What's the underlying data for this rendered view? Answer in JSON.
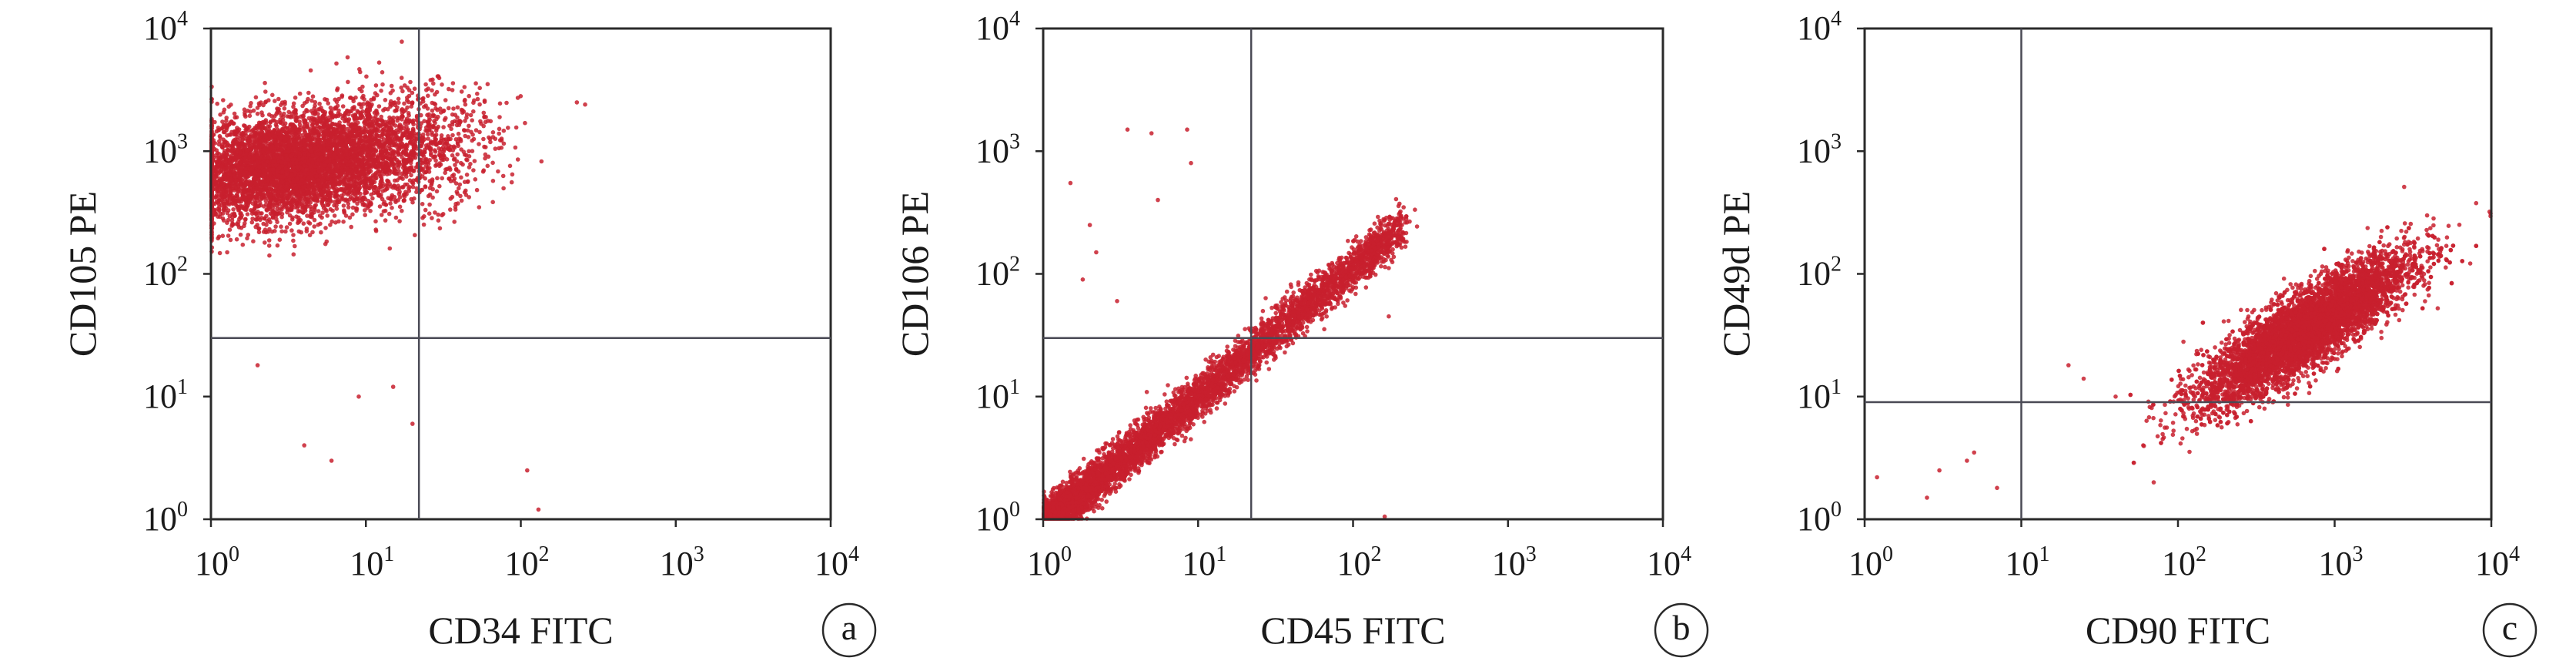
{
  "figure": {
    "colors": {
      "point": "#c8202e",
      "axis": "#2a2a2a",
      "gate": "#4a4a55"
    }
  },
  "chart_data": [
    {
      "type": "scatter",
      "panel_label": "a",
      "xlabel": "CD34 FITC",
      "ylabel": "CD105 PE",
      "x_scale": "log",
      "y_scale": "log",
      "xlim": [
        1,
        10000
      ],
      "ylim": [
        1,
        10000
      ],
      "x_ticks": [
        {
          "base": "10",
          "exp": "0"
        },
        {
          "base": "10",
          "exp": "1"
        },
        {
          "base": "10",
          "exp": "2"
        },
        {
          "base": "10",
          "exp": "3"
        },
        {
          "base": "10",
          "exp": "4"
        }
      ],
      "y_ticks": [
        {
          "base": "10",
          "exp": "0"
        },
        {
          "base": "10",
          "exp": "1"
        },
        {
          "base": "10",
          "exp": "2"
        },
        {
          "base": "10",
          "exp": "3"
        },
        {
          "base": "10",
          "exp": "4"
        }
      ],
      "gate": {
        "x": 22,
        "y": 30
      },
      "clusters": [
        {
          "n": 5200,
          "center": [
            3.2,
            750
          ],
          "spread_log10": [
            0.38,
            0.22
          ],
          "corr": 0.25
        },
        {
          "n": 900,
          "center": [
            18,
            1100
          ],
          "spread_log10": [
            0.3,
            0.25
          ],
          "corr": 0.1
        }
      ],
      "outliers": [
        [
          2,
          18
        ],
        [
          4,
          4
        ],
        [
          6,
          3
        ],
        [
          9,
          10
        ],
        [
          15,
          12
        ],
        [
          20,
          6
        ],
        [
          110,
          2.5
        ],
        [
          130,
          1.2
        ],
        [
          230,
          2500
        ],
        [
          260,
          2400
        ]
      ]
    },
    {
      "type": "scatter",
      "panel_label": "b",
      "xlabel": "CD45 FITC",
      "ylabel": "CD106 PE",
      "x_scale": "log",
      "y_scale": "log",
      "xlim": [
        1,
        10000
      ],
      "ylim": [
        1,
        10000
      ],
      "x_ticks": [
        {
          "base": "10",
          "exp": "0"
        },
        {
          "base": "10",
          "exp": "1"
        },
        {
          "base": "10",
          "exp": "2"
        },
        {
          "base": "10",
          "exp": "3"
        },
        {
          "base": "10",
          "exp": "4"
        }
      ],
      "y_ticks": [
        {
          "base": "10",
          "exp": "0"
        },
        {
          "base": "10",
          "exp": "1"
        },
        {
          "base": "10",
          "exp": "2"
        },
        {
          "base": "10",
          "exp": "3"
        },
        {
          "base": "10",
          "exp": "4"
        }
      ],
      "gate": {
        "x": 22,
        "y": 30
      },
      "diagonal": {
        "n": 6000,
        "x_range": [
          1,
          200
        ],
        "slope": 1.05,
        "intercept_log10": -0.05,
        "width_log10": 0.09,
        "density_decay": 1.6
      },
      "outliers": [
        [
          3.5,
          1500
        ],
        [
          5,
          1400
        ],
        [
          8.5,
          1500
        ],
        [
          9,
          800
        ],
        [
          5.5,
          400
        ],
        [
          1.5,
          550
        ],
        [
          2,
          250
        ],
        [
          1.8,
          90
        ],
        [
          2.2,
          150
        ],
        [
          3,
          60
        ],
        [
          170,
          45
        ],
        [
          160,
          1.05
        ]
      ]
    },
    {
      "type": "scatter",
      "panel_label": "c",
      "xlabel": "CD90 FITC",
      "ylabel": "CD49d PE",
      "x_scale": "log",
      "y_scale": "log",
      "xlim": [
        1,
        10000
      ],
      "ylim": [
        1,
        10000
      ],
      "x_ticks": [
        {
          "base": "10",
          "exp": "0"
        },
        {
          "base": "10",
          "exp": "1"
        },
        {
          "base": "10",
          "exp": "2"
        },
        {
          "base": "10",
          "exp": "3"
        },
        {
          "base": "10",
          "exp": "4"
        }
      ],
      "y_ticks": [
        {
          "base": "10",
          "exp": "0"
        },
        {
          "base": "10",
          "exp": "1"
        },
        {
          "base": "10",
          "exp": "2"
        },
        {
          "base": "10",
          "exp": "3"
        },
        {
          "base": "10",
          "exp": "4"
        }
      ],
      "gate": {
        "x": 10,
        "y": 9
      },
      "clusters": [
        {
          "n": 6500,
          "center": [
            650,
            35
          ],
          "spread_log10": [
            0.33,
            0.3
          ],
          "corr": 0.85
        }
      ],
      "outliers": [
        [
          1.2,
          2.2
        ],
        [
          3,
          2.5
        ],
        [
          4.5,
          3
        ],
        [
          5,
          3.5
        ],
        [
          2.5,
          1.5
        ],
        [
          7,
          1.8
        ],
        [
          20,
          18
        ],
        [
          25,
          14
        ],
        [
          40,
          10
        ],
        [
          60,
          4
        ],
        [
          70,
          2
        ]
      ]
    }
  ]
}
